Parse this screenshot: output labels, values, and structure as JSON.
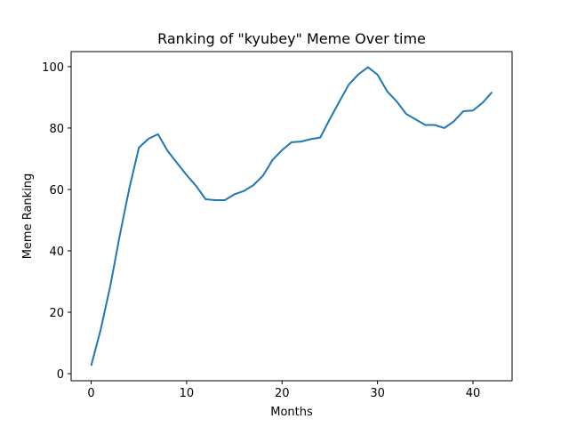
{
  "chart_data": {
    "type": "line",
    "title": "Ranking of \"kyubey\" Meme Over time",
    "xlabel": "Months",
    "ylabel": "Meme Ranking",
    "xlim": [
      -2.1,
      44.1
    ],
    "ylim": [
      -2.3,
      104.9
    ],
    "xticks": [
      0,
      10,
      20,
      30,
      40
    ],
    "yticks": [
      0,
      20,
      40,
      60,
      80,
      100
    ],
    "grid": false,
    "series": [
      {
        "color": "#1f77b4",
        "x": [
          0,
          1,
          2,
          3,
          4,
          5,
          6,
          7,
          8,
          9,
          10,
          11,
          12,
          13,
          14,
          15,
          16,
          17,
          18,
          19,
          20,
          21,
          22,
          23,
          24,
          25,
          26,
          27,
          28,
          29,
          30,
          31,
          32,
          33,
          34,
          35,
          36,
          37,
          38,
          39,
          40,
          41,
          42
        ],
        "values": [
          2.6,
          14.4,
          28.5,
          45.1,
          60.4,
          73.6,
          76.5,
          78.0,
          72.6,
          68.6,
          64.7,
          61.1,
          56.8,
          56.5,
          56.5,
          58.4,
          59.5,
          61.4,
          64.5,
          69.6,
          72.8,
          75.4,
          75.6,
          76.4,
          76.9,
          82.9,
          88.6,
          94.2,
          97.5,
          99.8,
          97.4,
          92.0,
          88.7,
          84.6,
          82.8,
          81.0,
          81.0,
          80.0,
          82.2,
          85.5,
          85.7,
          88.2,
          91.7
        ]
      }
    ]
  }
}
